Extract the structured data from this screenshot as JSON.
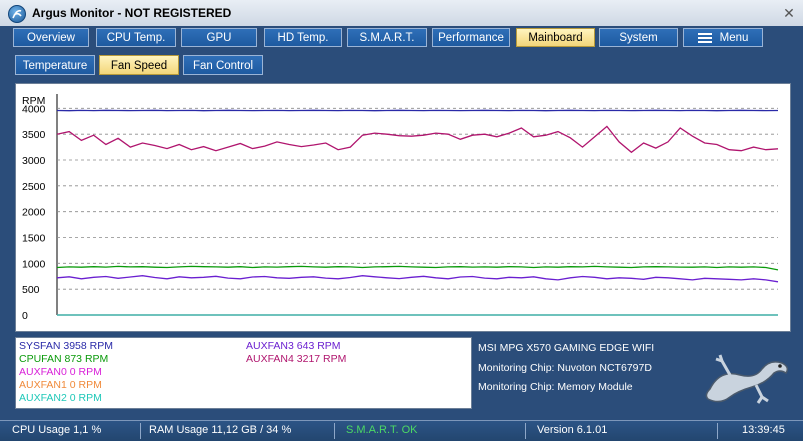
{
  "window": {
    "title": "Argus Monitor - NOT REGISTERED"
  },
  "main_tabs": [
    {
      "label": "Overview"
    },
    {
      "label": "CPU Temp."
    },
    {
      "label": "GPU"
    },
    {
      "label": "HD Temp."
    },
    {
      "label": "S.M.A.R.T."
    },
    {
      "label": "Performance"
    },
    {
      "label": "Mainboard",
      "active": true
    },
    {
      "label": "System"
    },
    {
      "label": "Menu"
    }
  ],
  "sub_tabs": [
    {
      "label": "Temperature"
    },
    {
      "label": "Fan Speed",
      "active": true
    },
    {
      "label": "Fan Control"
    }
  ],
  "chart_data": {
    "type": "line",
    "ylabel": "RPM",
    "ylim": [
      0,
      4200
    ],
    "y_ticks": [
      "4000",
      "3500",
      "3000",
      "2500",
      "2000",
      "1500",
      "1000",
      "500",
      "0"
    ],
    "grid": true,
    "samples": 60,
    "series": [
      {
        "name": "SYSFAN",
        "color": "#2a2aa8",
        "values": [
          3958,
          3955,
          3960,
          3957,
          3962,
          3958,
          3956,
          3959,
          3961,
          3957,
          3958,
          3960,
          3955,
          3958,
          3962,
          3959,
          3957,
          3958,
          3960,
          3956,
          3959,
          3961,
          3958,
          3957,
          3960,
          3958,
          3955,
          3959,
          3962,
          3958,
          3957,
          3960,
          3958,
          3956,
          3959,
          3961,
          3958,
          3957,
          3960,
          3958,
          3955,
          3959,
          3962,
          3958,
          3957,
          3960,
          3958,
          3956,
          3959,
          3961,
          3958,
          3957,
          3960,
          3958,
          3955,
          3959,
          3962,
          3958,
          3957,
          3958
        ]
      },
      {
        "name": "CPUFAN",
        "color": "#0a9a0a",
        "values": [
          920,
          930,
          925,
          935,
          928,
          940,
          930,
          935,
          925,
          920,
          930,
          940,
          935,
          930,
          925,
          935,
          920,
          930,
          928,
          935,
          940,
          930,
          925,
          935,
          930,
          920,
          930,
          935,
          940,
          930,
          925,
          920,
          930,
          935,
          928,
          930,
          925,
          935,
          930,
          920,
          930,
          925,
          935,
          930,
          940,
          930,
          925,
          920,
          930,
          935,
          930,
          928,
          925,
          930,
          920,
          930,
          925,
          930,
          920,
          873
        ]
      },
      {
        "name": "AUXFAN0",
        "color": "#d81fd8",
        "values": [
          0,
          0,
          0,
          0,
          0,
          0,
          0,
          0,
          0,
          0,
          0,
          0,
          0,
          0,
          0,
          0,
          0,
          0,
          0,
          0,
          0,
          0,
          0,
          0,
          0,
          0,
          0,
          0,
          0,
          0,
          0,
          0,
          0,
          0,
          0,
          0,
          0,
          0,
          0,
          0,
          0,
          0,
          0,
          0,
          0,
          0,
          0,
          0,
          0,
          0,
          0,
          0,
          0,
          0,
          0,
          0,
          0,
          0,
          0,
          0
        ]
      },
      {
        "name": "AUXFAN1",
        "color": "#f08a3a",
        "values": [
          0,
          0,
          0,
          0,
          0,
          0,
          0,
          0,
          0,
          0,
          0,
          0,
          0,
          0,
          0,
          0,
          0,
          0,
          0,
          0,
          0,
          0,
          0,
          0,
          0,
          0,
          0,
          0,
          0,
          0,
          0,
          0,
          0,
          0,
          0,
          0,
          0,
          0,
          0,
          0,
          0,
          0,
          0,
          0,
          0,
          0,
          0,
          0,
          0,
          0,
          0,
          0,
          0,
          0,
          0,
          0,
          0,
          0,
          0,
          0
        ]
      },
      {
        "name": "AUXFAN2",
        "color": "#1fc8b8",
        "values": [
          0,
          0,
          0,
          0,
          0,
          0,
          0,
          0,
          0,
          0,
          0,
          0,
          0,
          0,
          0,
          0,
          0,
          0,
          0,
          0,
          0,
          0,
          0,
          0,
          0,
          0,
          0,
          0,
          0,
          0,
          0,
          0,
          0,
          0,
          0,
          0,
          0,
          0,
          0,
          0,
          0,
          0,
          0,
          0,
          0,
          0,
          0,
          0,
          0,
          0,
          0,
          0,
          0,
          0,
          0,
          0,
          0,
          0,
          0,
          0
        ]
      },
      {
        "name": "AUXFAN3",
        "color": "#6a1fd0",
        "values": [
          720,
          740,
          700,
          730,
          745,
          710,
          735,
          760,
          725,
          700,
          740,
          720,
          730,
          750,
          715,
          700,
          735,
          745,
          720,
          710,
          730,
          740,
          715,
          700,
          725,
          760,
          740,
          720,
          705,
          730,
          750,
          720,
          700,
          735,
          745,
          715,
          700,
          730,
          720,
          740,
          700,
          680,
          720,
          745,
          730,
          700,
          720,
          710,
          690,
          730,
          720,
          700,
          680,
          710,
          700,
          690,
          680,
          700,
          680,
          643
        ]
      },
      {
        "name": "AUXFAN4",
        "color": "#b0156e",
        "values": [
          3500,
          3550,
          3380,
          3480,
          3300,
          3420,
          3250,
          3330,
          3280,
          3220,
          3300,
          3200,
          3260,
          3180,
          3250,
          3320,
          3220,
          3270,
          3350,
          3300,
          3260,
          3290,
          3330,
          3200,
          3250,
          3480,
          3520,
          3500,
          3470,
          3460,
          3480,
          3520,
          3500,
          3400,
          3480,
          3500,
          3450,
          3520,
          3620,
          3450,
          3480,
          3550,
          3430,
          3250,
          3450,
          3650,
          3350,
          3150,
          3330,
          3230,
          3350,
          3620,
          3460,
          3330,
          3300,
          3200,
          3180,
          3250,
          3200,
          3217
        ]
      }
    ]
  },
  "legend": [
    {
      "label": "SYSFAN 3958 RPM",
      "color": "#2a2aa8"
    },
    {
      "label": "CPUFAN 873 RPM",
      "color": "#0a9a0a"
    },
    {
      "label": "AUXFAN0 0 RPM",
      "color": "#d81fd8"
    },
    {
      "label": "AUXFAN1 0 RPM",
      "color": "#f08a3a"
    },
    {
      "label": "AUXFAN2 0 RPM",
      "color": "#1fc8b8"
    },
    {
      "label": "AUXFAN3 643 RPM",
      "color": "#6a1fd0"
    },
    {
      "label": "AUXFAN4 3217 RPM",
      "color": "#b0156e"
    }
  ],
  "info": {
    "board": "MSI MPG X570 GAMING EDGE WIFI",
    "chip1": "Monitoring Chip: Nuvoton NCT6797D",
    "chip2": "Monitoring Chip: Memory Module"
  },
  "status": {
    "cpu": "CPU Usage 1,1 %",
    "ram": "RAM Usage 11,12 GB / 34 %",
    "smart": "S.M.A.R.T. OK",
    "version": "Version 6.1.01",
    "time": "13:39:45"
  },
  "colors": {
    "background": "#2b4d7a",
    "tab": "#1e5aa0",
    "tab_active": "#f3d67a",
    "smart_ok": "#4cd964"
  },
  "icons": {
    "app": "argus-logo-icon",
    "close": "close-icon",
    "menu": "hamburger-menu-icon",
    "mascot": "lizard-mascot"
  }
}
